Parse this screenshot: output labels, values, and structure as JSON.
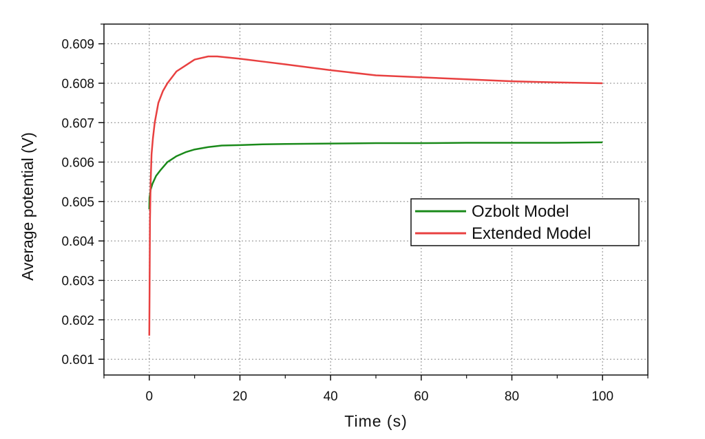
{
  "chart_data": {
    "type": "line",
    "title": "",
    "xlabel": "Time (s)",
    "ylabel": "Average potential (V)",
    "xlim": [
      -10,
      110
    ],
    "ylim": [
      0.6006,
      0.6095
    ],
    "x_ticks": [
      "0",
      "20",
      "40",
      "60",
      "80",
      "100"
    ],
    "y_ticks": [
      "0.601",
      "0.602",
      "0.603",
      "0.604",
      "0.605",
      "0.606",
      "0.607",
      "0.608",
      "0.609"
    ],
    "grid": true,
    "legend_position": "right",
    "series": [
      {
        "name": "Ozbolt Model",
        "color": "#1a8a1a",
        "x": [
          0,
          0.05,
          0.3,
          0.7,
          1.5,
          2.5,
          4,
          6,
          8,
          10,
          13,
          16,
          20,
          25,
          30,
          40,
          50,
          60,
          70,
          80,
          90,
          100
        ],
        "y": [
          0.6048,
          0.6051,
          0.6053,
          0.60545,
          0.60565,
          0.6058,
          0.606,
          0.60615,
          0.60625,
          0.60632,
          0.60638,
          0.60642,
          0.60643,
          0.60645,
          0.60646,
          0.60647,
          0.60648,
          0.60648,
          0.60649,
          0.60649,
          0.60649,
          0.6065
        ]
      },
      {
        "name": "Extended Model",
        "color": "#e84040",
        "x": [
          0,
          0.05,
          0.15,
          0.3,
          0.5,
          0.8,
          1.2,
          2,
          3,
          4,
          5,
          6,
          8,
          10,
          13,
          15,
          20,
          25,
          30,
          40,
          50,
          60,
          70,
          80,
          90,
          100
        ],
        "y": [
          0.6016,
          0.6025,
          0.6045,
          0.6055,
          0.6062,
          0.6066,
          0.607,
          0.6075,
          0.6078,
          0.608,
          0.60815,
          0.6083,
          0.60845,
          0.6086,
          0.60868,
          0.60868,
          0.60862,
          0.60855,
          0.60848,
          0.60833,
          0.6082,
          0.60815,
          0.6081,
          0.60805,
          0.60802,
          0.608
        ]
      }
    ]
  }
}
